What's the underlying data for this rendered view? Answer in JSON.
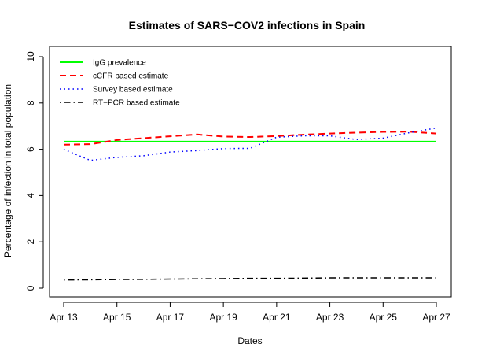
{
  "chart_data": {
    "type": "line",
    "title": "Estimates of SARS−COV2 infections in Spain",
    "xlabel": "Dates",
    "ylabel": "Percentage of infection in total population",
    "x": [
      "Apr 13",
      "Apr 14",
      "Apr 15",
      "Apr 16",
      "Apr 17",
      "Apr 18",
      "Apr 19",
      "Apr 20",
      "Apr 21",
      "Apr 22",
      "Apr 23",
      "Apr 24",
      "Apr 25",
      "Apr 26",
      "Apr 27"
    ],
    "x_tick_labels": [
      "Apr 13",
      "Apr 15",
      "Apr 17",
      "Apr 19",
      "Apr 21",
      "Apr 23",
      "Apr 25",
      "Apr 27"
    ],
    "ylim": [
      0,
      10
    ],
    "y_ticks": [
      0,
      2,
      4,
      6,
      8,
      10
    ],
    "y_tick_labels": [
      "0",
      "2",
      "4",
      "6",
      "8",
      "10"
    ],
    "legend_position": "top-left",
    "series": [
      {
        "name": "IgG prevalence",
        "color": "#00ff00",
        "style": "solid",
        "values": [
          6.33,
          6.33,
          6.33,
          6.33,
          6.33,
          6.33,
          6.33,
          6.33,
          6.33,
          6.33,
          6.33,
          6.33,
          6.33,
          6.33,
          6.33
        ]
      },
      {
        "name": "cCFR based estimate",
        "color": "#ff0000",
        "style": "dashed",
        "values": [
          6.2,
          6.22,
          6.4,
          6.48,
          6.56,
          6.64,
          6.55,
          6.53,
          6.57,
          6.63,
          6.68,
          6.72,
          6.75,
          6.76,
          6.68
        ]
      },
      {
        "name": "Survey based estimate",
        "color": "#0000ff",
        "style": "dotted",
        "values": [
          6.0,
          5.52,
          5.65,
          5.72,
          5.88,
          5.94,
          6.03,
          6.04,
          6.52,
          6.58,
          6.58,
          6.42,
          6.48,
          6.72,
          6.92
        ]
      },
      {
        "name": "RT−PCR based estimate",
        "color": "#000000",
        "style": "dotdash",
        "values": [
          0.35,
          0.36,
          0.37,
          0.38,
          0.39,
          0.4,
          0.41,
          0.42,
          0.42,
          0.43,
          0.44,
          0.44,
          0.44,
          0.44,
          0.44
        ]
      }
    ]
  }
}
